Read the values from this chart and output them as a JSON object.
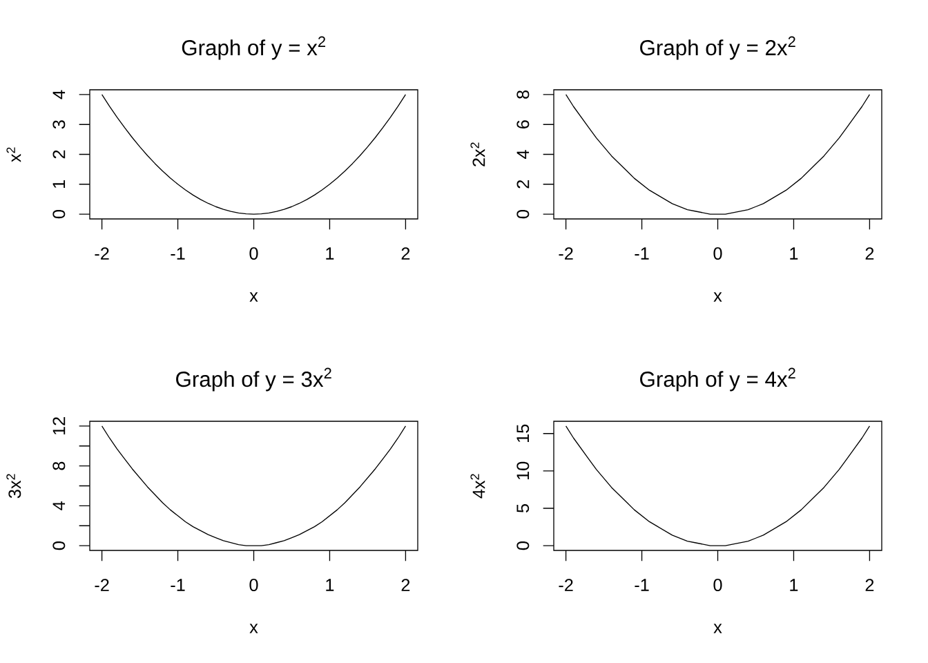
{
  "chart_data": [
    {
      "type": "line",
      "title": "Graph of y = x$^{2}$",
      "xlabel": "x",
      "ylabel": "x$^{2}$",
      "x": [
        -2,
        -1.9,
        -1.8,
        -1.7,
        -1.6,
        -1.5,
        -1.4,
        -1.3,
        -1.2,
        -1.1,
        -1,
        -0.9,
        -0.8,
        -0.7,
        -0.6,
        -0.5,
        -0.4,
        -0.3,
        -0.2,
        -0.1,
        0,
        0.1,
        0.2,
        0.3,
        0.4,
        0.5,
        0.6,
        0.7,
        0.8,
        0.9,
        1,
        1.1,
        1.2,
        1.3,
        1.4,
        1.5,
        1.6,
        1.7,
        1.8,
        1.9,
        2
      ],
      "values": [
        4,
        3.61,
        3.24,
        2.89,
        2.56,
        2.25,
        1.96,
        1.69,
        1.44,
        1.21,
        1,
        0.81,
        0.64,
        0.49,
        0.36,
        0.25,
        0.16,
        0.09,
        0.04,
        0.01,
        0,
        0.01,
        0.04,
        0.09,
        0.16,
        0.25,
        0.36,
        0.49,
        0.64,
        0.81,
        1,
        1.21,
        1.44,
        1.69,
        1.96,
        2.25,
        2.56,
        2.89,
        3.24,
        3.61,
        4
      ],
      "color": "#000000",
      "xlim": [
        -2.16,
        2.16
      ],
      "ylim": [
        -0.16,
        4.16
      ],
      "xticks": [
        -2,
        -1,
        0,
        1,
        2
      ],
      "yticks": [
        0,
        1,
        2,
        3,
        4
      ]
    },
    {
      "type": "line",
      "title": "Graph of y = 2x$^{2}$",
      "xlabel": "x",
      "ylabel": "2x$^{2}$",
      "x": [
        -2,
        -1.9,
        -1.8,
        -1.7,
        -1.6,
        -1.5,
        -1.4,
        -1.3,
        -1.2,
        -1.1,
        -1,
        -0.9,
        -0.8,
        -0.7,
        -0.6,
        -0.5,
        -0.4,
        -0.3,
        -0.2,
        -0.1,
        0,
        0.1,
        0.2,
        0.3,
        0.4,
        0.5,
        0.6,
        0.7,
        0.8,
        0.9,
        1,
        1.1,
        1.2,
        1.3,
        1.4,
        1.5,
        1.6,
        1.7,
        1.8,
        1.9,
        2
      ],
      "values": [
        8,
        7.2,
        6.5,
        5.8,
        5.1,
        4.5,
        3.9,
        3.4,
        2.9,
        2.4,
        2,
        1.6,
        1.3,
        1,
        0.7,
        0.5,
        0.3,
        0.2,
        0.1,
        0,
        0,
        0,
        0.1,
        0.2,
        0.3,
        0.5,
        0.7,
        1,
        1.3,
        1.6,
        2,
        2.4,
        2.9,
        3.4,
        3.9,
        4.5,
        5.1,
        5.8,
        6.5,
        7.2,
        8
      ],
      "color": "#000000",
      "xlim": [
        -2.16,
        2.16
      ],
      "ylim": [
        -0.32,
        8.32
      ],
      "xticks": [
        -2,
        -1,
        0,
        1,
        2
      ],
      "yticks": [
        0,
        2,
        4,
        6,
        8
      ]
    },
    {
      "type": "line",
      "title": "Graph of y = 3x$^{2}$",
      "xlabel": "x",
      "ylabel": "3x$^{2}$",
      "x": [
        -2,
        -1.9,
        -1.8,
        -1.7,
        -1.6,
        -1.5,
        -1.4,
        -1.3,
        -1.2,
        -1.1,
        -1,
        -0.9,
        -0.8,
        -0.7,
        -0.6,
        -0.5,
        -0.4,
        -0.3,
        -0.2,
        -0.1,
        0,
        0.1,
        0.2,
        0.3,
        0.4,
        0.5,
        0.6,
        0.7,
        0.8,
        0.9,
        1,
        1.1,
        1.2,
        1.3,
        1.4,
        1.5,
        1.6,
        1.7,
        1.8,
        1.9,
        2
      ],
      "values": [
        12,
        10.8,
        9.7,
        8.7,
        7.7,
        6.8,
        5.9,
        5.1,
        4.3,
        3.6,
        3,
        2.4,
        1.9,
        1.5,
        1.1,
        0.8,
        0.5,
        0.3,
        0.1,
        0,
        0,
        0,
        0.1,
        0.3,
        0.5,
        0.8,
        1.1,
        1.5,
        1.9,
        2.4,
        3,
        3.6,
        4.3,
        5.1,
        5.9,
        6.8,
        7.7,
        8.7,
        9.7,
        10.8,
        12
      ],
      "color": "#000000",
      "xlim": [
        -2.16,
        2.16
      ],
      "ylim": [
        -0.48,
        12.48
      ],
      "xticks": [
        -2,
        -1,
        0,
        1,
        2
      ],
      "yticks": [
        0,
        {
          "value": 2,
          "label": null
        },
        4,
        {
          "value": 6,
          "label": null
        },
        8,
        {
          "value": 10,
          "label": null
        },
        12
      ]
    },
    {
      "type": "line",
      "title": "Graph of y = 4x$^{2}$",
      "xlabel": "x",
      "ylabel": "4x$^{2}$",
      "x": [
        -2,
        -1.9,
        -1.8,
        -1.7,
        -1.6,
        -1.5,
        -1.4,
        -1.3,
        -1.2,
        -1.1,
        -1,
        -0.9,
        -0.8,
        -0.7,
        -0.6,
        -0.5,
        -0.4,
        -0.3,
        -0.2,
        -0.1,
        0,
        0.1,
        0.2,
        0.3,
        0.4,
        0.5,
        0.6,
        0.7,
        0.8,
        0.9,
        1,
        1.1,
        1.2,
        1.3,
        1.4,
        1.5,
        1.6,
        1.7,
        1.8,
        1.9,
        2
      ],
      "values": [
        16,
        14.4,
        13,
        11.6,
        10.2,
        9,
        7.8,
        6.8,
        5.8,
        4.8,
        4,
        3.2,
        2.6,
        2,
        1.4,
        1,
        0.6,
        0.4,
        0.2,
        0,
        0,
        0,
        0.2,
        0.4,
        0.6,
        1,
        1.4,
        2,
        2.6,
        3.2,
        4,
        4.8,
        5.8,
        6.8,
        7.8,
        9,
        10.2,
        11.6,
        13,
        14.4,
        16
      ],
      "color": "#000000",
      "xlim": [
        -2.16,
        2.16
      ],
      "ylim": [
        -0.64,
        16.64
      ],
      "xticks": [
        -2,
        -1,
        0,
        1,
        2
      ],
      "yticks": [
        0,
        5,
        10,
        15
      ]
    }
  ]
}
